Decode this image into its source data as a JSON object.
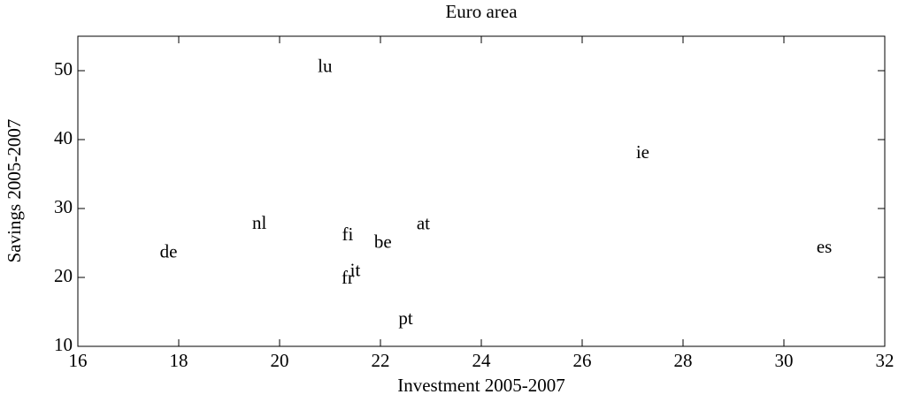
{
  "chart_data": {
    "type": "scatter",
    "title": "Euro area",
    "xlabel": "Investment 2005-2007",
    "ylabel": "Savings 2005-2007",
    "labels": [
      "lu",
      "ie",
      "nl",
      "de",
      "fi",
      "be",
      "at",
      "es",
      "it",
      "fr",
      "pt"
    ],
    "x": [
      20.9,
      27.2,
      19.6,
      17.8,
      21.35,
      22.05,
      22.85,
      30.8,
      21.5,
      21.35,
      22.5
    ],
    "values": [
      50.4,
      37.9,
      27.7,
      23.5,
      26.0,
      24.9,
      27.6,
      24.2,
      20.8,
      19.7,
      13.8
    ],
    "color": "#000000",
    "xlim": [
      16,
      32
    ],
    "xticks": [
      16,
      18,
      20,
      22,
      24,
      26,
      28,
      30,
      32
    ],
    "ylim": [
      10,
      55
    ],
    "yticks": [
      10,
      20,
      30,
      40,
      50
    ]
  }
}
